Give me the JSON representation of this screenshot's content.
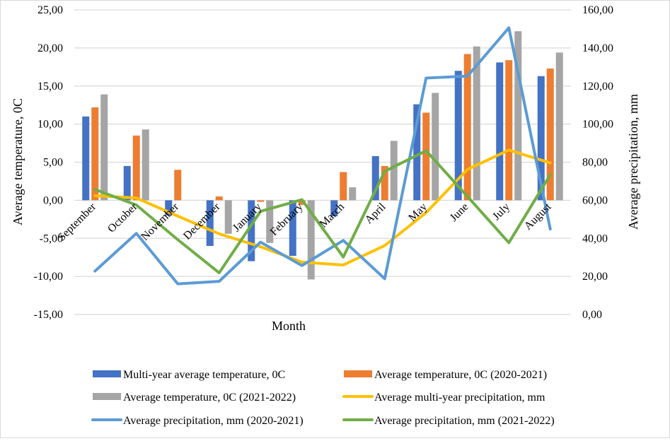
{
  "chart_data": {
    "type": "bar",
    "title": "",
    "xlabel": "Month",
    "ylabel": "Average temperature, 0C",
    "y2label": "Average precipitation, mm",
    "ylim": [
      -15,
      25
    ],
    "y2lim": [
      0,
      160
    ],
    "yticks": [
      "-15,00",
      "-10,00",
      "-5,00",
      "0,00",
      "5,00",
      "10,00",
      "15,00",
      "20,00",
      "25,00"
    ],
    "y2ticks": [
      "0,00",
      "20,00",
      "40,00",
      "60,00",
      "80,00",
      "100,00",
      "120,00",
      "140,00",
      "160,00"
    ],
    "grid": true,
    "legend_position": "bottom",
    "categories": [
      "September",
      "October",
      "November",
      "December",
      "January",
      "February",
      "March",
      "April",
      "May",
      "June",
      "July",
      "August"
    ],
    "series": [
      {
        "name": "Multi-year average temperature, 0C",
        "kind": "bar",
        "axis": "left",
        "color": "#4472c4",
        "values": [
          11.0,
          4.5,
          -2.0,
          -6.0,
          -8.0,
          -7.3,
          -2.1,
          5.8,
          12.6,
          17.0,
          18.1,
          16.3
        ]
      },
      {
        "name": "Average temperature, 0C (2020-2021)",
        "kind": "bar",
        "axis": "left",
        "color": "#ed7d31",
        "values": [
          12.2,
          8.5,
          4.0,
          0.5,
          -0.2,
          -0.6,
          3.7,
          4.5,
          11.5,
          19.2,
          18.4,
          17.3
        ]
      },
      {
        "name": "Average temperature, 0C (2021-2022)",
        "kind": "bar",
        "axis": "left",
        "color": "#a5a5a5",
        "values": [
          13.9,
          9.3,
          0.0,
          -4.4,
          -5.6,
          -10.4,
          1.7,
          7.8,
          14.1,
          20.2,
          22.2,
          19.4
        ]
      },
      {
        "name": "Average multi-year precipitation, mm",
        "kind": "line",
        "axis": "right",
        "color": "#ffc000",
        "values": [
          62.4,
          61.2,
          51.7,
          42.4,
          35.6,
          27.5,
          26.0,
          36.2,
          53.5,
          76.2,
          86.4,
          79.6
        ]
      },
      {
        "name": "Average precipitation, mm (2020-2021)",
        "kind": "line",
        "axis": "right",
        "color": "#5b9bd5",
        "values": [
          22.8,
          42.6,
          16.1,
          17.4,
          38.0,
          25.7,
          38.9,
          18.8,
          124.2,
          125.2,
          150.6,
          44.9
        ]
      },
      {
        "name": "Average precipitation, mm (2021-2022)",
        "kind": "line",
        "axis": "right",
        "color": "#70ad47",
        "values": [
          65.7,
          57.5,
          39.3,
          21.9,
          54.2,
          60.3,
          30.2,
          75.2,
          86.0,
          62.0,
          37.7,
          73.4
        ]
      }
    ],
    "gridline_color": "#d9d9d9"
  }
}
